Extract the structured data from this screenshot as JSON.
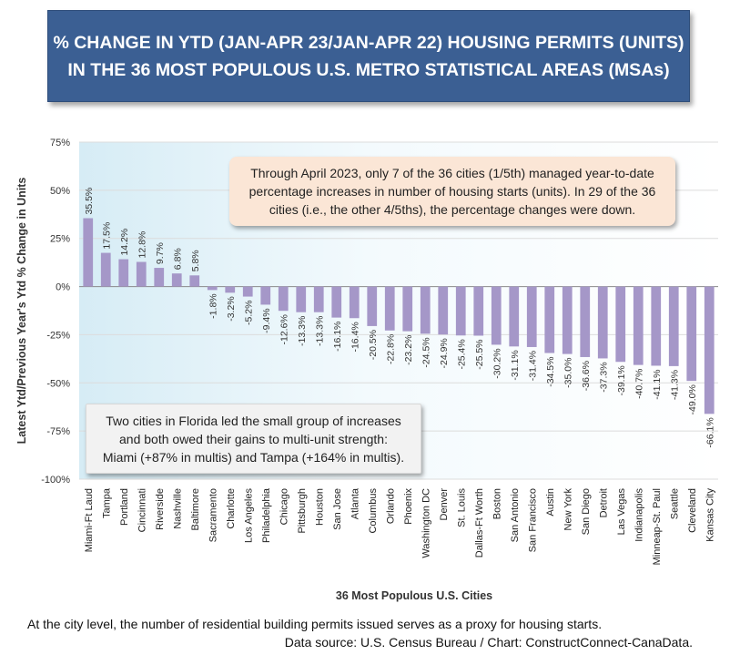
{
  "title": {
    "line1": "% CHANGE IN YTD (JAN-APR 23/JAN-APR 22) HOUSING PERMITS (UNITS)",
    "line2": "IN THE 36 MOST POPULOUS U.S. METRO STATISTICAL AREAS (MSAs)"
  },
  "callouts": {
    "top": [
      "Through April 2023, only 7 of the 36 cities (1/5th) managed year-to-date",
      "percentage increases in number of housing starts (units). In 29 of the 36",
      "cities (i.e., the other 4/5ths), the percentage changes were down."
    ],
    "bottom": [
      "Two cities in Florida led the small group of increases",
      "and both owed their gains to multi-unit strength:",
      "Miami (+87% in multis) and Tampa (+164% in multis)."
    ]
  },
  "footnotes": {
    "line1": "At the city level, the number of residential building permits issued serves as a proxy for housing starts.",
    "line2": "Data source: U.S. Census Bureau / Chart: ConstructConnect-CanaData."
  },
  "colors": {
    "bar": "#a597c8",
    "title_bg": "#3b5f93",
    "plot_bg_edge": "#d6ecf5"
  },
  "chart_data": {
    "type": "bar",
    "title": "% CHANGE IN YTD (JAN-APR 23/JAN-APR 22) HOUSING PERMITS (UNITS) IN THE 36 MOST POPULOUS U.S. METRO STATISTICAL AREAS (MSAs)",
    "xlabel": "36 Most Populous U.S. Cities",
    "ylabel": "Latest Ytd/Previous Year's Ytd % Change in Units",
    "ylim": [
      -100,
      75
    ],
    "yticks": [
      75,
      50,
      25,
      0,
      -25,
      -50,
      -75,
      -100
    ],
    "ytick_labels": [
      "75%",
      "50%",
      "25%",
      "0%",
      "-25%",
      "-50%",
      "-75%",
      "-100%"
    ],
    "categories": [
      "Miami-Ft Laud",
      "Tampa",
      "Portland",
      "Cincinnati",
      "Riverside",
      "Nashville",
      "Baltimore",
      "Sacramento",
      "Charlotte",
      "Los Angeles",
      "Philadelphia",
      "Chicago",
      "Pittsburgh",
      "Houston",
      "San Jose",
      "Atlanta",
      "Columbus",
      "Orlando",
      "Phoenix",
      "Washington DC",
      "Denver",
      "St. Louis",
      "Dallas-Ft Worth",
      "Boston",
      "San Antonio",
      "San Francisco",
      "Austin",
      "New York",
      "San Diego",
      "Detroit",
      "Las Vegas",
      "Indianapolis",
      "Minneap-St. Paul",
      "Seattle",
      "Cleveland",
      "Kansas City"
    ],
    "values": [
      35.5,
      17.5,
      14.2,
      12.8,
      9.7,
      6.8,
      5.8,
      -1.8,
      -3.2,
      -5.2,
      -9.4,
      -12.6,
      -13.3,
      -13.3,
      -16.1,
      -16.4,
      -20.5,
      -22.8,
      -23.2,
      -24.5,
      -24.9,
      -25.4,
      -25.5,
      -30.2,
      -31.1,
      -31.4,
      -34.5,
      -35.0,
      -36.6,
      -37.3,
      -39.1,
      -40.7,
      -41.1,
      -41.3,
      -49.0,
      -66.1
    ],
    "data_labels": [
      "35.5%",
      "17.5%",
      "14.2%",
      "12.8%",
      "9.7%",
      "6.8%",
      "5.8%",
      "-1.8%",
      "-3.2%",
      "-5.2%",
      "-9.4%",
      "-12.6%",
      "-13.3%",
      "-13.3%",
      "-16.1%",
      "-16.4%",
      "-20.5%",
      "-22.8%",
      "-23.2%",
      "-24.5%",
      "-24.9%",
      "-25.4%",
      "-25.5%",
      "-30.2%",
      "-31.1%",
      "-31.4%",
      "-34.5%",
      "-35.0%",
      "-36.6%",
      "-37.3%",
      "-39.1%",
      "-40.7%",
      "-41.1%",
      "-41.3%",
      "-49.0%",
      "-66.1%"
    ]
  }
}
